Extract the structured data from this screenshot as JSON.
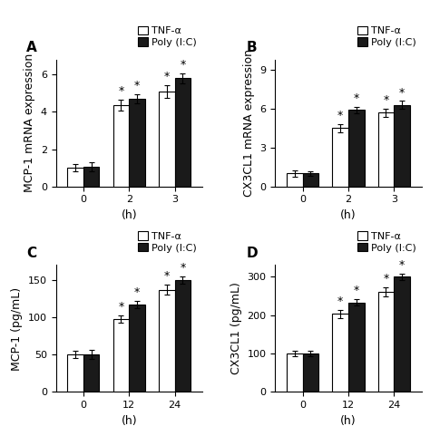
{
  "chart_data": [
    {
      "type": "bar",
      "title": "A",
      "ylabel": "MCP-1 mRNA expression",
      "xlabel": "(h)",
      "categories": [
        "0",
        "2",
        "3"
      ],
      "ylim": [
        0,
        6.8
      ],
      "yticks": [
        0,
        2,
        4,
        6
      ],
      "legend": "upper right",
      "series": [
        {
          "name": "TNF-α",
          "color": "#ffffff",
          "values": [
            1.0,
            4.35,
            5.1
          ],
          "errors": [
            0.2,
            0.3,
            0.35
          ]
        },
        {
          "name": "Poly (I:C)",
          "color": "#1a1a1a",
          "values": [
            1.05,
            4.7,
            5.8
          ],
          "errors": [
            0.25,
            0.25,
            0.25
          ]
        }
      ],
      "annotations": [
        {
          "text": "*",
          "category": "2",
          "series": "TNF-α"
        },
        {
          "text": "*",
          "category": "3",
          "series": "TNF-α"
        },
        {
          "text": "*",
          "category": "2",
          "series": "Poly (I:C)"
        },
        {
          "text": "*",
          "category": "3",
          "series": "Poly (I:C)"
        }
      ]
    },
    {
      "type": "bar",
      "title": "B",
      "ylabel": "CX3CL1 mRNA expression",
      "xlabel": "(h)",
      "categories": [
        "0",
        "2",
        "3"
      ],
      "ylim": [
        0,
        9.8
      ],
      "yticks": [
        0,
        3,
        6,
        9
      ],
      "legend": "upper right",
      "series": [
        {
          "name": "TNF-α",
          "color": "#ffffff",
          "values": [
            1.0,
            4.5,
            5.7
          ],
          "errors": [
            0.25,
            0.3,
            0.3
          ]
        },
        {
          "name": "Poly (I:C)",
          "color": "#1a1a1a",
          "values": [
            1.0,
            5.9,
            6.3
          ],
          "errors": [
            0.2,
            0.25,
            0.3
          ]
        }
      ],
      "annotations": [
        {
          "text": "*",
          "category": "2",
          "series": "TNF-α"
        },
        {
          "text": "*",
          "category": "3",
          "series": "TNF-α"
        },
        {
          "text": "*",
          "category": "2",
          "series": "Poly (I:C)"
        },
        {
          "text": "*",
          "category": "3",
          "series": "Poly (I:C)"
        }
      ]
    },
    {
      "type": "bar",
      "title": "C",
      "ylabel": "MCP-1 (pg/mL)",
      "xlabel": "(h)",
      "categories": [
        "0",
        "12",
        "24"
      ],
      "ylim": [
        0,
        170
      ],
      "yticks": [
        0,
        50,
        100,
        150
      ],
      "legend": "upper right",
      "series": [
        {
          "name": "TNF-α",
          "color": "#ffffff",
          "values": [
            50,
            98,
            137
          ],
          "errors": [
            5,
            5,
            7
          ]
        },
        {
          "name": "Poly (I:C)",
          "color": "#1a1a1a",
          "values": [
            50,
            117,
            150
          ],
          "errors": [
            6,
            5,
            5
          ]
        }
      ],
      "annotations": [
        {
          "text": "*",
          "category": "12",
          "series": "TNF-α"
        },
        {
          "text": "*",
          "category": "24",
          "series": "TNF-α"
        },
        {
          "text": "*",
          "category": "12",
          "series": "Poly (I:C)"
        },
        {
          "text": "*",
          "category": "24",
          "series": "Poly (I:C)"
        }
      ]
    },
    {
      "type": "bar",
      "title": "D",
      "ylabel": "CX3CL1 (pg/mL)",
      "xlabel": "(h)",
      "categories": [
        "0",
        "12",
        "24"
      ],
      "ylim": [
        0,
        330
      ],
      "yticks": [
        0,
        100,
        200,
        300
      ],
      "legend": "upper right",
      "series": [
        {
          "name": "TNF-α",
          "color": "#ffffff",
          "values": [
            100,
            203,
            260
          ],
          "errors": [
            8,
            10,
            12
          ]
        },
        {
          "name": "Poly (I:C)",
          "color": "#1a1a1a",
          "values": [
            100,
            233,
            300
          ],
          "errors": [
            8,
            8,
            8
          ]
        }
      ],
      "annotations": [
        {
          "text": "*",
          "category": "12",
          "series": "TNF-α"
        },
        {
          "text": "*",
          "category": "24",
          "series": "TNF-α"
        },
        {
          "text": "*",
          "category": "12",
          "series": "Poly (I:C)"
        },
        {
          "text": "*",
          "category": "24",
          "series": "Poly (I:C)"
        }
      ]
    }
  ]
}
